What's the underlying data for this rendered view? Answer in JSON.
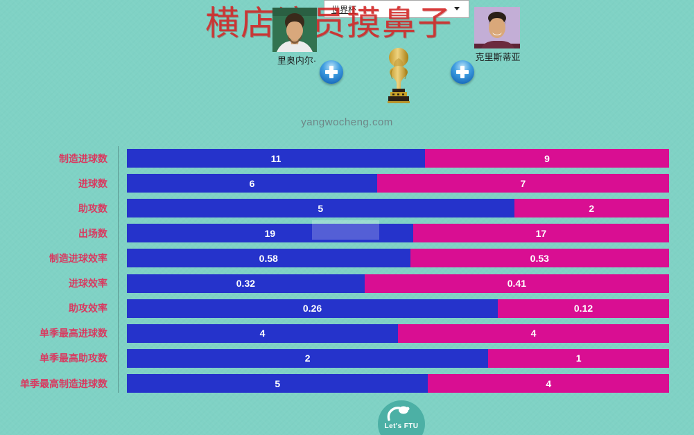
{
  "watermark": "横店演员摸鼻子",
  "dropdown": {
    "value": "世界杯"
  },
  "players": {
    "left": {
      "name": "里奥内尔·"
    },
    "right": {
      "name": "克里斯蒂亚"
    }
  },
  "site": "yangwocheng.com",
  "logo": {
    "text": "Let's FTU"
  },
  "colors": {
    "background": "#80d2c5",
    "left_bar": "#2533cb",
    "right_bar": "#d90e92",
    "label": "#d83a60",
    "watermark": "#d52626"
  },
  "chart_data": {
    "type": "bar",
    "orientation": "horizontal-stacked-comparison",
    "title": "",
    "categories": [
      "制造进球数",
      "进球数",
      "助攻数",
      "出场数",
      "制造进球效率",
      "进球效率",
      "助攻效率",
      "单季最高进球数",
      "单季最高助攻数",
      "单季最高制造进球数"
    ],
    "series": [
      {
        "name": "里奥内尔·",
        "color": "#2533cb",
        "values": [
          11,
          6,
          5,
          19,
          0.58,
          0.32,
          0.26,
          4,
          2,
          5
        ]
      },
      {
        "name": "克里斯蒂亚",
        "color": "#d90e92",
        "values": [
          9,
          7,
          2,
          17,
          0.53,
          0.41,
          0.12,
          4,
          1,
          4
        ]
      }
    ],
    "legend": false,
    "grid": false
  }
}
